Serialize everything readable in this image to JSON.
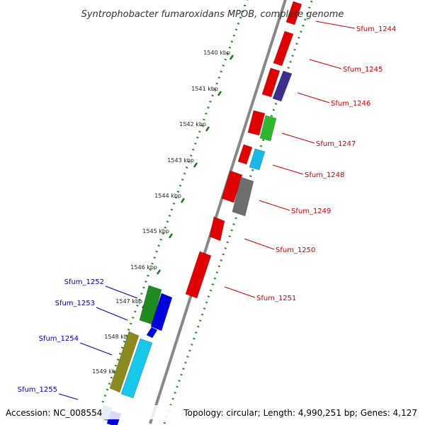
{
  "title": "Syntrophobacter fumaroxidans MPOB, complete genome",
  "footer": {
    "accession": "Accession: NC_008554",
    "stats": "Topology: circular; Length: 4,990,251 bp; Genes: 4,127"
  },
  "colors": {
    "forward_label": "#cc0000",
    "reverse_label": "#0000aa",
    "backbone": "#888888",
    "tick_dots": "#2a8a2a"
  },
  "ticks": [
    {
      "label": "1540 kbp",
      "kbp": 1540
    },
    {
      "label": "1541 kbp",
      "kbp": 1541
    },
    {
      "label": "1542 kbp",
      "kbp": 1542
    },
    {
      "label": "1543 kbp",
      "kbp": 1543
    },
    {
      "label": "1544 kbp",
      "kbp": 1544
    },
    {
      "label": "1545 kbp",
      "kbp": 1545
    },
    {
      "label": "1546 kbp",
      "kbp": 1546
    },
    {
      "label": "1547 kbp",
      "kbp": 1547
    },
    {
      "label": "1548 kbp",
      "kbp": 1548
    },
    {
      "label": "1549 kbp",
      "kbp": 1549
    }
  ],
  "forward_genes": [
    {
      "label": "Sfum_1244",
      "color": "#e00000"
    },
    {
      "label": "Sfum_1245",
      "color": "#e00000"
    },
    {
      "label": "Sfum_1246",
      "color": "#3a2f8c"
    },
    {
      "label": "Sfum_1247",
      "color": "#2fb82f"
    },
    {
      "label": "Sfum_1248",
      "color": "#18b8e8"
    },
    {
      "label": "Sfum_1249",
      "color": "#6e6e6e"
    },
    {
      "label": "Sfum_1250",
      "color": "#e00000"
    },
    {
      "label": "Sfum_1251",
      "color": "#e00000"
    }
  ],
  "reverse_genes": [
    {
      "label": "Sfum_1252",
      "color": "#1f8a1f"
    },
    {
      "label": "Sfum_1253",
      "color": "#0000dd"
    },
    {
      "label": "Sfum_1254",
      "color": "#8a8a1f"
    },
    {
      "label": "Sfum_1255",
      "color": "#5a8ab0"
    }
  ]
}
